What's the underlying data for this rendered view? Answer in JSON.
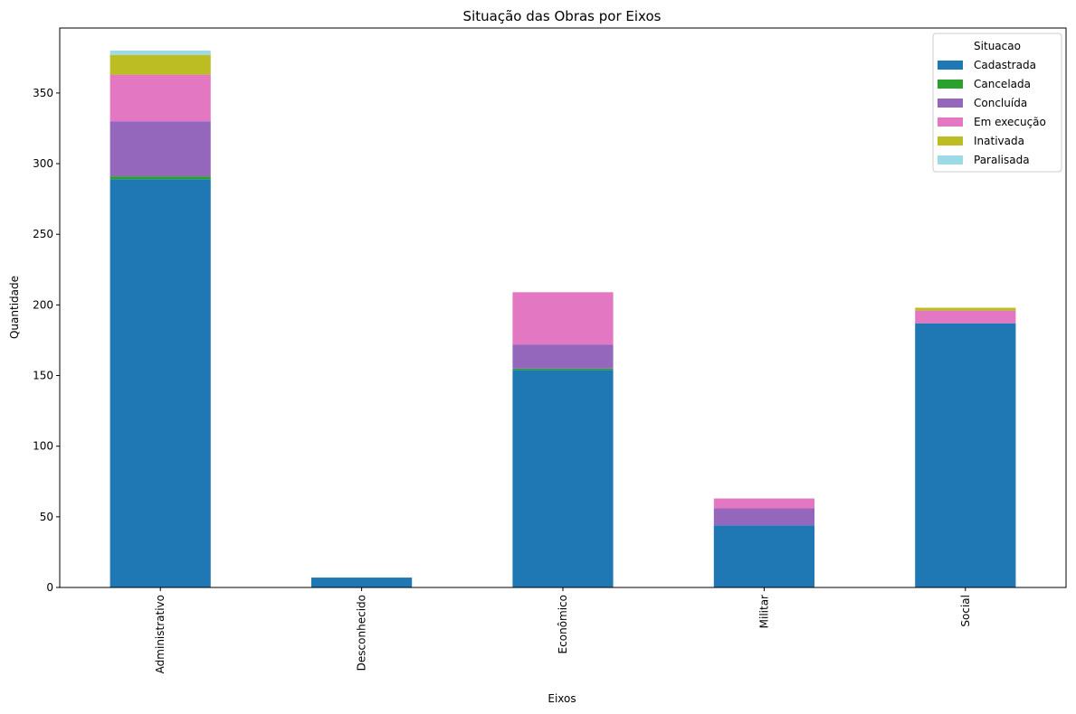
{
  "chart_data": {
    "type": "bar",
    "stacked": true,
    "title": "Situação das Obras por Eixos",
    "xlabel": "Eixos",
    "ylabel": "Quantidade",
    "ylim": [
      0,
      396
    ],
    "yticks": [
      0,
      50,
      100,
      150,
      200,
      250,
      300,
      350
    ],
    "categories": [
      "Administrativo",
      "Desconhecido",
      "Econômico",
      "Militar",
      "Social"
    ],
    "legend": {
      "title": "Situacao",
      "placement": "top-right"
    },
    "grid": false,
    "series": [
      {
        "name": "Cadastrada",
        "color": "#1f77b4",
        "values": [
          289,
          7,
          154,
          44,
          187
        ]
      },
      {
        "name": "Cancelada",
        "color": "#2ca02c",
        "values": [
          2,
          0,
          1,
          0,
          0
        ]
      },
      {
        "name": "Concluída",
        "color": "#9467bd",
        "values": [
          39,
          0,
          17,
          12,
          0
        ]
      },
      {
        "name": "Em execução",
        "color": "#e377c2",
        "values": [
          33,
          0,
          37,
          7,
          9
        ]
      },
      {
        "name": "Inativada",
        "color": "#bcbd22",
        "values": [
          14,
          0,
          0,
          0,
          2
        ]
      },
      {
        "name": "Paralisada",
        "color": "#9edae5",
        "values": [
          3,
          0,
          0,
          0,
          0
        ]
      }
    ]
  }
}
